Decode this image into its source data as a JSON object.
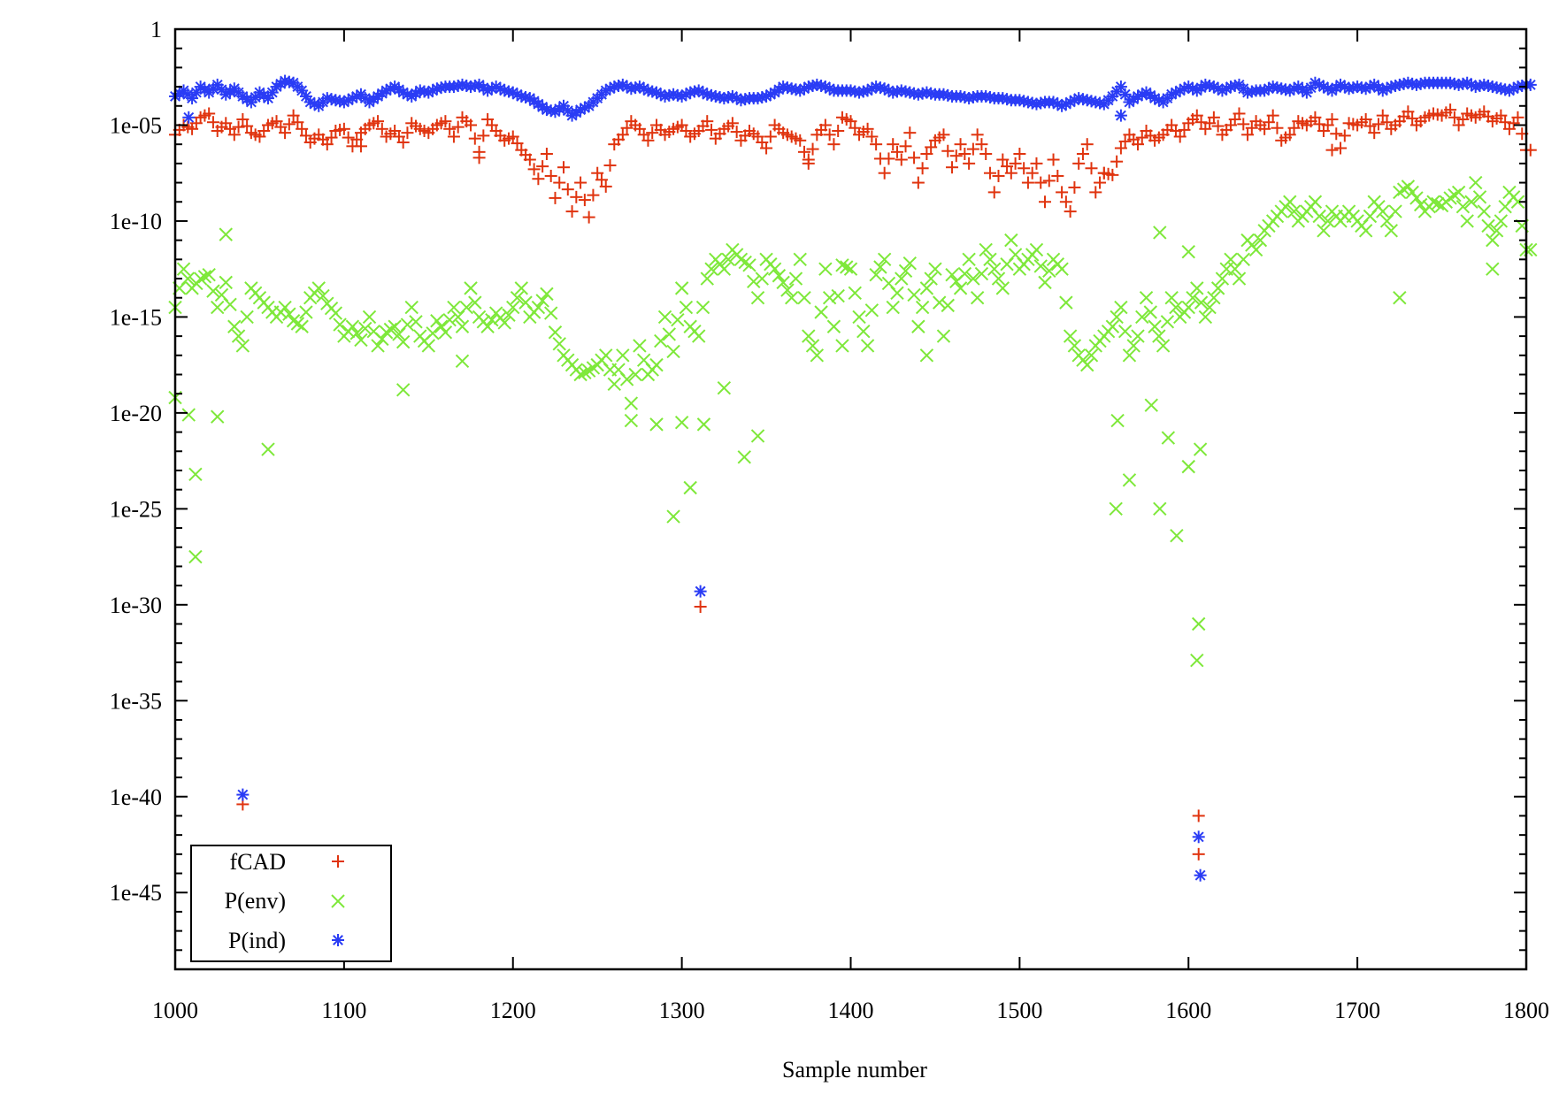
{
  "chart_data": {
    "type": "scatter",
    "title": "",
    "xlabel": "Sample number",
    "ylabel": "",
    "xlim": [
      1000,
      1800
    ],
    "ylim_log10": [
      -49,
      0
    ],
    "yscale": "log",
    "grid": false,
    "legend_position": "bottom-left",
    "x_ticks": [
      1000,
      1100,
      1200,
      1300,
      1400,
      1500,
      1600,
      1700,
      1800
    ],
    "x_tick_labels": [
      "1000",
      "1100",
      "1200",
      "1300",
      "1400",
      "1500",
      "1600",
      "1700",
      "1800"
    ],
    "y_ticks_log10": [
      0,
      -5,
      -10,
      -15,
      -20,
      -25,
      -30,
      -35,
      -40,
      -45
    ],
    "y_tick_labels": [
      "1",
      "1e-05",
      "1e-10",
      "1e-15",
      "1e-20",
      "1e-25",
      "1e-30",
      "1e-35",
      "1e-40",
      "1e-45"
    ],
    "series": [
      {
        "name": "fCAD",
        "marker": "plus",
        "color": "#e0340f",
        "x_start": 1000,
        "x_step": 5,
        "log10_values": [
          -5.5,
          -5.0,
          -5.2,
          -4.6,
          -4.4,
          -5.3,
          -4.9,
          -5.5,
          -4.7,
          -5.4,
          -5.6,
          -5.0,
          -4.8,
          -5.4,
          -4.5,
          -5.2,
          -5.9,
          -5.5,
          -6.0,
          -5.3,
          -5.2,
          -6.1,
          -5.4,
          -5.0,
          -4.8,
          -5.6,
          -5.3,
          -5.9,
          -4.9,
          -5.2,
          -5.4,
          -5.0,
          -4.8,
          -5.6,
          -4.6,
          -5.0,
          -6.4,
          -4.7,
          -5.3,
          -5.8,
          -5.6,
          -6.3,
          -6.8,
          -7.8,
          -6.5,
          -8.8,
          -7.2,
          -9.5,
          -8.0,
          -9.8,
          -7.5,
          -8.2,
          -6.0,
          -5.5,
          -4.8,
          -5.2,
          -5.8,
          -5.0,
          -5.5,
          -5.2,
          -5.0,
          -5.6,
          -5.3,
          -4.8,
          -5.7,
          -5.2,
          -4.9,
          -5.8,
          -5.3,
          -5.6,
          -6.2,
          -5.0,
          -5.4,
          -5.6,
          -5.8,
          -7.0,
          -5.5,
          -5.0,
          -6.0,
          -4.6,
          -4.8,
          -5.5,
          -5.2,
          -6.0,
          -7.5,
          -6.0,
          -6.8,
          -5.4,
          -8.0,
          -6.5,
          -5.8,
          -5.5,
          -7.2,
          -6.0,
          -7.0,
          -5.5,
          -6.5,
          -8.5,
          -6.8,
          -7.5,
          -6.5,
          -8.0,
          -7.0,
          -9.0,
          -6.8,
          -8.5,
          -9.5,
          -7.0,
          -6.0,
          -8.5,
          -7.5,
          -7.6,
          -6.2,
          -5.5,
          -6.0,
          -5.3,
          -5.8,
          -5.5,
          -5.0,
          -5.6,
          -4.9,
          -4.5,
          -5.2,
          -4.6,
          -5.5,
          -5.0,
          -4.4,
          -5.5,
          -4.8,
          -5.2,
          -4.5,
          -5.8,
          -5.5,
          -4.8,
          -5.0,
          -4.6,
          -5.3,
          -4.7,
          -6.2,
          -4.9,
          -5.0,
          -4.7,
          -5.4,
          -4.5,
          -5.2,
          -4.8,
          -4.3,
          -5.0,
          -4.6,
          -4.4,
          -4.5,
          -4.2,
          -5.0,
          -4.4,
          -4.6,
          -4.3,
          -4.8,
          -4.5,
          -5.2,
          -4.6,
          -6.3
        ],
        "extra_points": [
          [
            1040,
            -40.4
          ],
          [
            1311,
            -30.1
          ],
          [
            1606,
            -41.0
          ],
          [
            1606,
            -43.0
          ],
          [
            1685,
            -6.3
          ],
          [
            1550,
            -7.5
          ],
          [
            1375,
            -6.8
          ],
          [
            1180,
            -6.7
          ],
          [
            1110,
            -6.1
          ]
        ]
      },
      {
        "name": "P(env)",
        "marker": "cross",
        "color": "#7ee83a",
        "x_start": 1000,
        "x_step": 5,
        "log10_values": [
          -14.5,
          -12.5,
          -13.5,
          -13.0,
          -12.8,
          -14.5,
          -13.2,
          -15.5,
          -16.5,
          -13.5,
          -14.0,
          -14.5,
          -15.0,
          -14.5,
          -15.2,
          -15.5,
          -14.0,
          -13.5,
          -14.3,
          -14.8,
          -16.0,
          -15.5,
          -16.2,
          -15.0,
          -16.5,
          -15.8,
          -15.5,
          -16.3,
          -14.5,
          -16.0,
          -16.5,
          -15.2,
          -15.8,
          -14.5,
          -15.5,
          -13.5,
          -15.0,
          -15.5,
          -14.8,
          -15.3,
          -14.5,
          -13.5,
          -15.0,
          -14.5,
          -13.8,
          -15.8,
          -17.0,
          -17.5,
          -18.0,
          -17.8,
          -17.5,
          -17.0,
          -18.5,
          -17.0,
          -19.5,
          -16.5,
          -18.0,
          -17.5,
          -15.0,
          -16.8,
          -13.5,
          -15.5,
          -16.0,
          -13.0,
          -12.0,
          -12.5,
          -11.5,
          -12.0,
          -12.3,
          -14.0,
          -12.0,
          -12.5,
          -13.2,
          -14.0,
          -12.0,
          -16.0,
          -17.0,
          -12.5,
          -15.5,
          -12.3,
          -12.5,
          -15.0,
          -16.5,
          -12.8,
          -12.0,
          -14.5,
          -13.0,
          -12.2,
          -15.5,
          -13.5,
          -12.5,
          -16.0,
          -12.8,
          -13.5,
          -12.0,
          -14.0,
          -11.5,
          -12.5,
          -13.5,
          -11.0,
          -12.5,
          -12.0,
          -11.5,
          -13.2,
          -12.0,
          -12.5,
          -16.0,
          -17.0,
          -17.5,
          -16.5,
          -16.0,
          -15.5,
          -14.5,
          -17.0,
          -16.0,
          -14.0,
          -15.5,
          -16.5,
          -14.0,
          -15.0,
          -14.5,
          -13.5,
          -15.0,
          -14.0,
          -13.0,
          -12.0,
          -13.0,
          -11.0,
          -11.5,
          -10.5,
          -10.0,
          -9.5,
          -9.0,
          -10.0,
          -9.5,
          -9.0,
          -10.5,
          -9.5,
          -10.0,
          -9.5,
          -10.0,
          -10.5,
          -9.0,
          -9.5,
          -10.5,
          -8.5,
          -8.2,
          -8.8,
          -9.5,
          -9.0,
          -9.2,
          -8.8,
          -8.5,
          -10.0,
          -8.0,
          -9.5,
          -11.0,
          -10.0,
          -8.5,
          -9.0,
          -11.5
        ],
        "extra_points": [
          [
            1000,
            -19.2
          ],
          [
            1008,
            -20.1
          ],
          [
            1012,
            -23.2
          ],
          [
            1012,
            -27.5
          ],
          [
            1025,
            -20.2
          ],
          [
            1030,
            -10.7
          ],
          [
            1055,
            -21.9
          ],
          [
            1135,
            -18.8
          ],
          [
            1170,
            -17.3
          ],
          [
            1270,
            -20.4
          ],
          [
            1285,
            -20.6
          ],
          [
            1295,
            -25.4
          ],
          [
            1300,
            -20.5
          ],
          [
            1305,
            -23.9
          ],
          [
            1313,
            -20.6
          ],
          [
            1325,
            -18.7
          ],
          [
            1337,
            -22.3
          ],
          [
            1345,
            -21.2
          ],
          [
            1395,
            -16.5
          ],
          [
            1445,
            -17.0
          ],
          [
            1557,
            -25.0
          ],
          [
            1558,
            -20.4
          ],
          [
            1565,
            -23.5
          ],
          [
            1578,
            -19.6
          ],
          [
            1583,
            -25.0
          ],
          [
            1583,
            -10.6
          ],
          [
            1588,
            -21.3
          ],
          [
            1593,
            -26.4
          ],
          [
            1600,
            -22.8
          ],
          [
            1600,
            -11.6
          ],
          [
            1605,
            -32.9
          ],
          [
            1606,
            -31.0
          ],
          [
            1607,
            -21.9
          ],
          [
            1725,
            -14.0
          ],
          [
            1780,
            -12.5
          ]
        ]
      },
      {
        "name": "P(ind)",
        "marker": "star",
        "color": "#2a3cf5",
        "x_start": 1000,
        "x_step": 5,
        "log10_values": [
          -3.5,
          -3.2,
          -3.6,
          -3.0,
          -3.3,
          -2.9,
          -3.4,
          -3.1,
          -3.5,
          -3.8,
          -3.3,
          -3.6,
          -3.0,
          -2.7,
          -2.8,
          -3.2,
          -3.8,
          -4.0,
          -3.6,
          -3.7,
          -3.8,
          -3.6,
          -3.4,
          -3.8,
          -3.5,
          -3.2,
          -3.0,
          -3.3,
          -3.5,
          -3.2,
          -3.3,
          -3.1,
          -3.0,
          -3.0,
          -2.9,
          -3.0,
          -2.9,
          -3.2,
          -3.0,
          -3.2,
          -3.3,
          -3.5,
          -3.6,
          -3.9,
          -4.2,
          -4.3,
          -4.0,
          -4.5,
          -4.2,
          -4.0,
          -3.6,
          -3.2,
          -3.0,
          -2.9,
          -3.1,
          -3.0,
          -3.2,
          -3.3,
          -3.5,
          -3.4,
          -3.5,
          -3.3,
          -3.2,
          -3.4,
          -3.5,
          -3.6,
          -3.5,
          -3.7,
          -3.6,
          -3.6,
          -3.5,
          -3.3,
          -3.0,
          -3.1,
          -3.2,
          -3.0,
          -2.9,
          -3.0,
          -3.2,
          -3.2,
          -3.2,
          -3.3,
          -3.2,
          -3.0,
          -3.1,
          -3.3,
          -3.2,
          -3.3,
          -3.4,
          -3.3,
          -3.4,
          -3.4,
          -3.5,
          -3.5,
          -3.6,
          -3.5,
          -3.5,
          -3.6,
          -3.6,
          -3.7,
          -3.7,
          -3.8,
          -3.9,
          -3.8,
          -3.8,
          -4.0,
          -3.8,
          -3.6,
          -3.7,
          -3.8,
          -3.9,
          -3.5,
          -3.0,
          -3.8,
          -3.5,
          -3.3,
          -3.6,
          -3.8,
          -3.4,
          -3.2,
          -3.0,
          -3.2,
          -2.9,
          -3.0,
          -3.2,
          -3.0,
          -2.9,
          -3.3,
          -3.2,
          -3.2,
          -3.0,
          -3.1,
          -3.2,
          -3.0,
          -3.3,
          -2.8,
          -3.0,
          -3.2,
          -2.9,
          -3.1,
          -3.0,
          -3.1,
          -2.9,
          -3.2,
          -3.0,
          -2.9,
          -2.8,
          -2.9,
          -2.8,
          -2.8,
          -2.8,
          -2.8,
          -2.9,
          -2.8,
          -3.0,
          -2.9,
          -3.0,
          -3.1,
          -3.2,
          -3.0,
          -2.9
        ],
        "extra_points": [
          [
            1040,
            -39.9
          ],
          [
            1311,
            -29.3
          ],
          [
            1606,
            -42.1
          ],
          [
            1607,
            -44.1
          ],
          [
            1008,
            -4.6
          ],
          [
            1560,
            -4.5
          ]
        ]
      }
    ]
  }
}
